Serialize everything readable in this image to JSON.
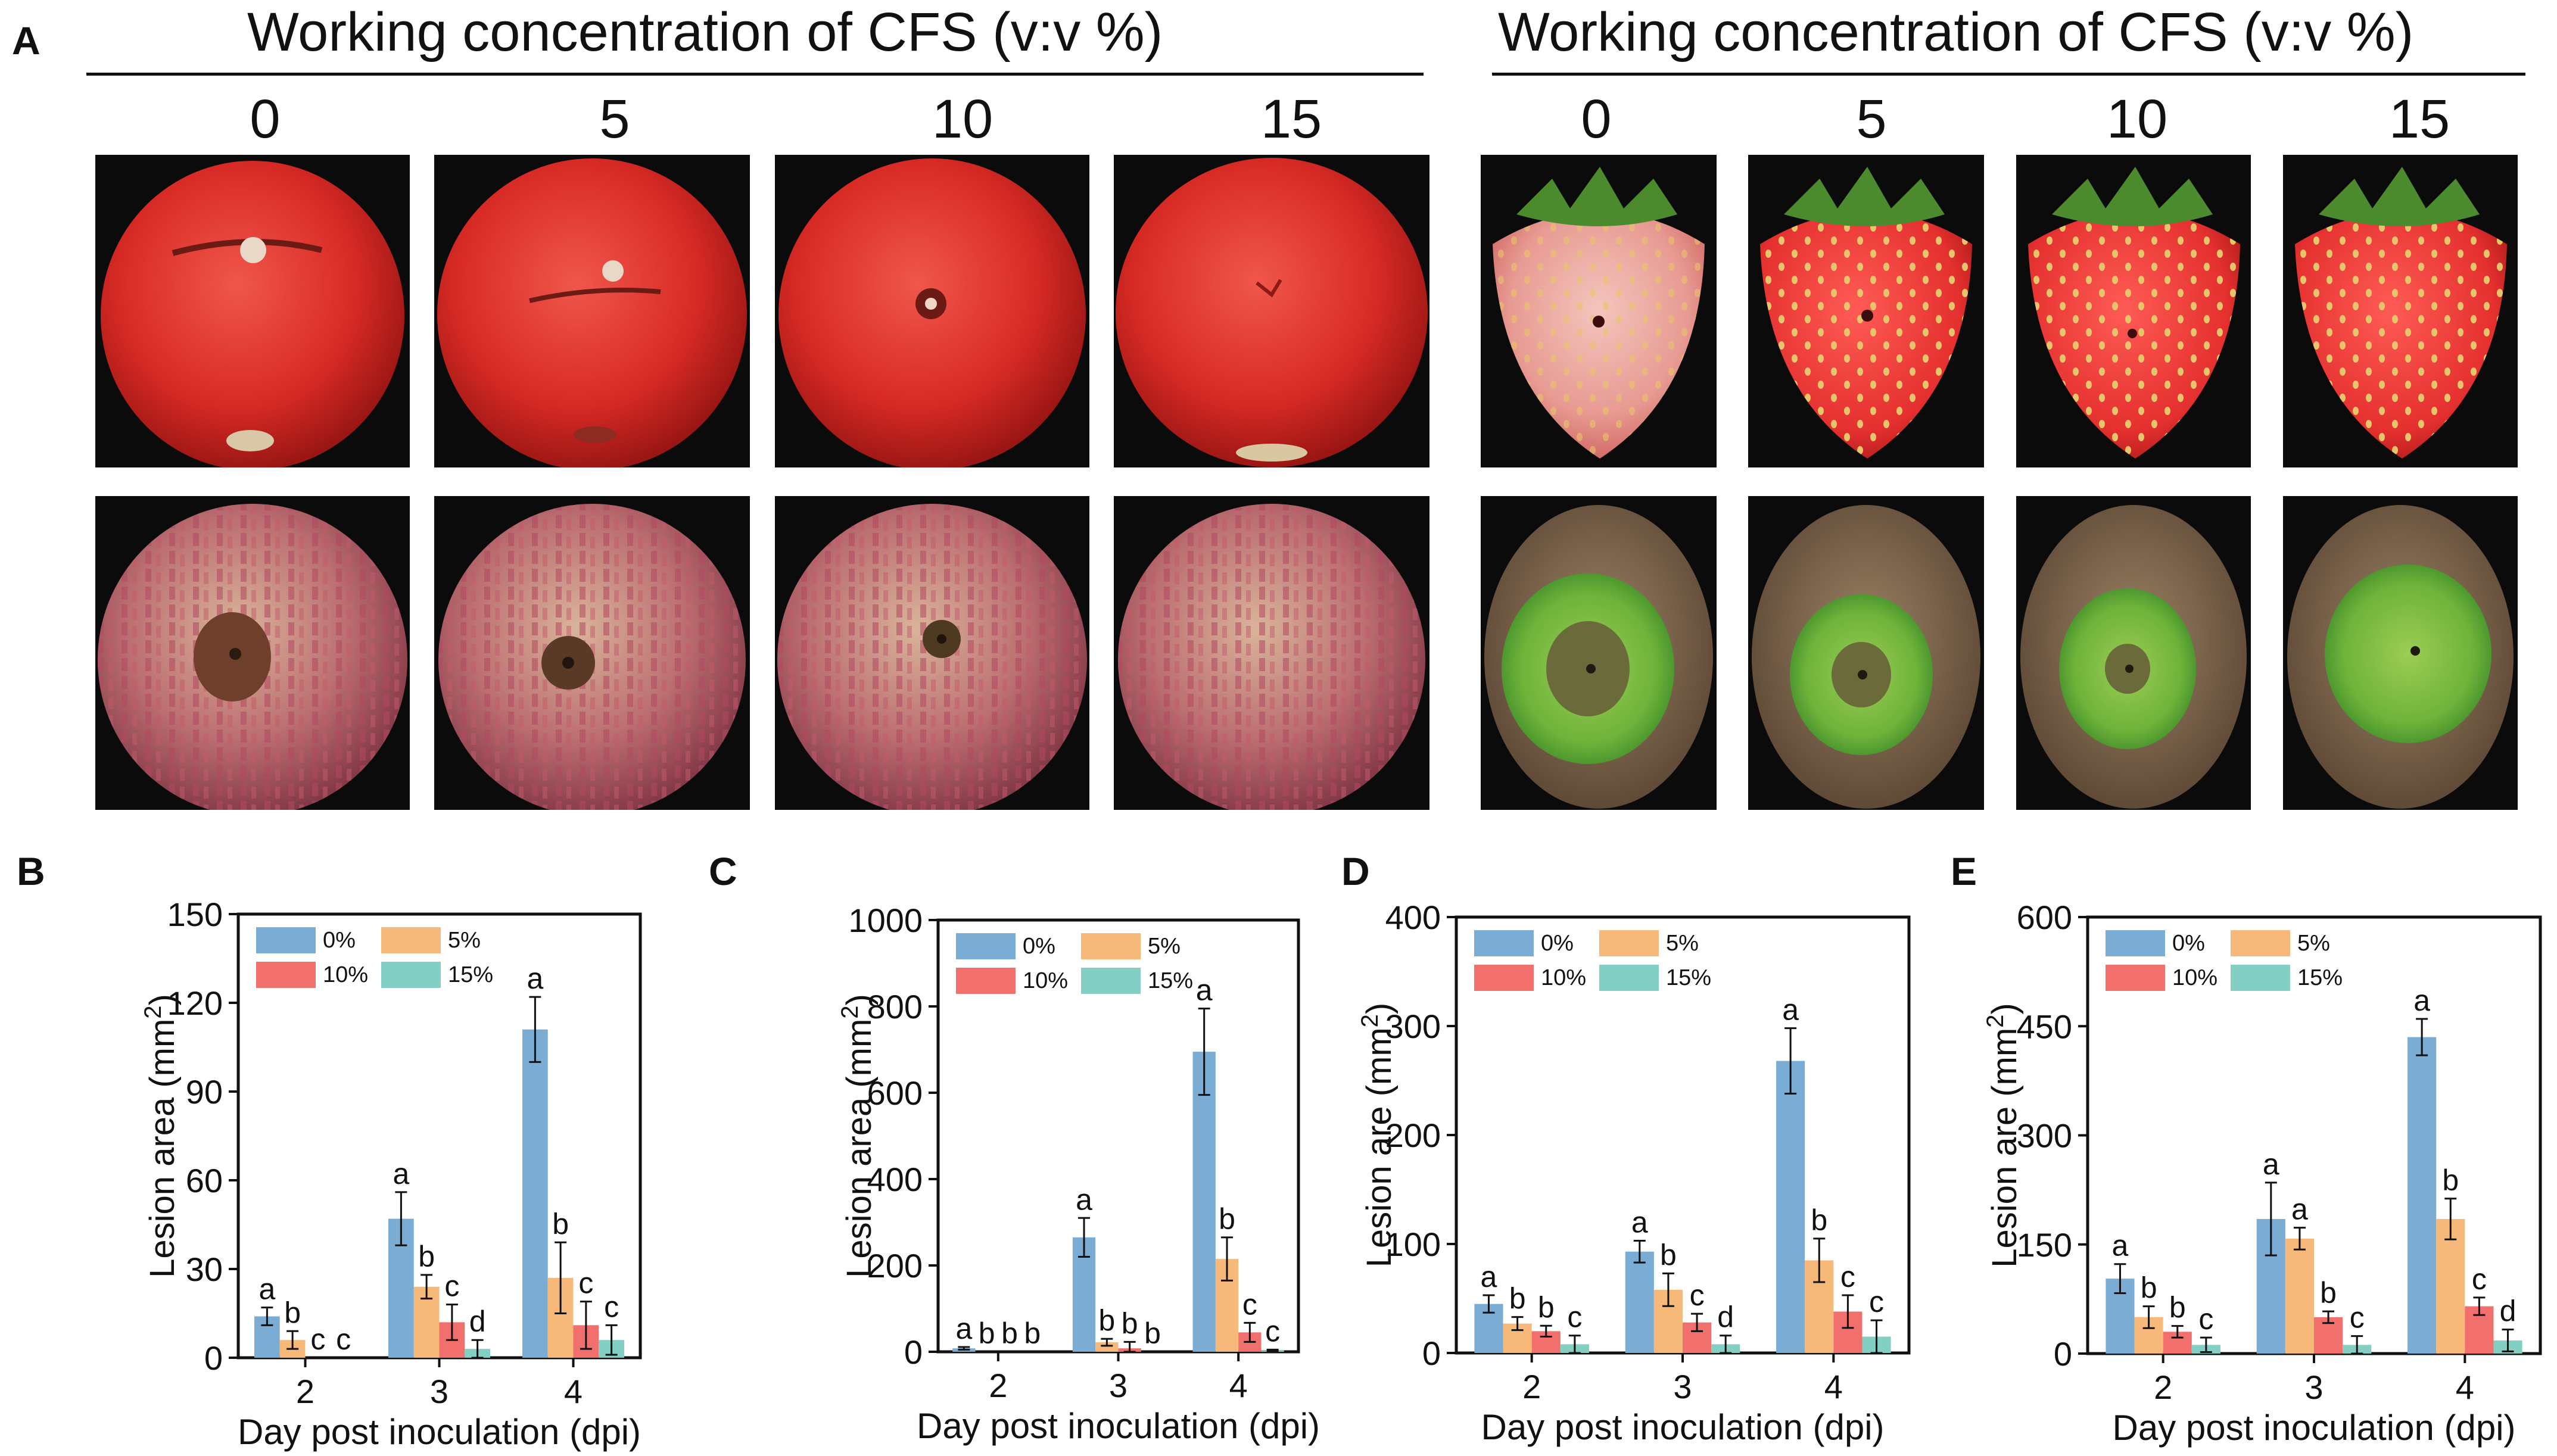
{
  "panel_a": {
    "letter": "A",
    "left_title": "Working concentration of CFS  (v:v %)",
    "right_title": "Working concentration of CFS  (v:v %)",
    "left_concentrations": [
      "0",
      "5",
      "10",
      "15"
    ],
    "right_concentrations": [
      "0",
      "5",
      "10",
      "15"
    ],
    "row_fruits": {
      "left_top": "tomato",
      "left_bottom": "apple",
      "right_top": "strawberry",
      "right_bottom": "kiwifruit"
    }
  },
  "colors": {
    "s0": "#7bacd4",
    "s5": "#f6b97a",
    "s10": "#f1706e",
    "s15": "#84cfc3"
  },
  "chart_data": [
    {
      "letter": "B",
      "type": "bar",
      "title": "",
      "xlabel": "Day post inoculation (dpi)",
      "ylabel": "Lesion area (mm",
      "ylabel_sup": "2",
      "ylabel_end": ")",
      "categories": [
        "2",
        "3",
        "4"
      ],
      "ylim": [
        0,
        150
      ],
      "yticks": [
        "0",
        "30",
        "60",
        "90",
        "120",
        "150"
      ],
      "series": [
        {
          "name": "0%",
          "values": [
            14,
            47,
            111
          ],
          "errors": [
            3,
            9,
            11
          ],
          "letters": [
            "a",
            "a",
            "a"
          ]
        },
        {
          "name": "5%",
          "values": [
            6,
            24,
            27
          ],
          "errors": [
            3,
            4,
            12
          ],
          "letters": [
            "b",
            "b",
            "b"
          ]
        },
        {
          "name": "10%",
          "values": [
            0,
            12,
            11
          ],
          "errors": [
            0,
            6,
            8
          ],
          "letters": [
            "c",
            "c",
            "c"
          ]
        },
        {
          "name": "15%",
          "values": [
            0,
            3,
            6
          ],
          "errors": [
            0,
            3,
            5
          ],
          "letters": [
            "c",
            "d",
            "c"
          ]
        }
      ]
    },
    {
      "letter": "C",
      "type": "bar",
      "title": "",
      "xlabel": "Day post inoculation (dpi)",
      "ylabel": "Lesion area (mm",
      "ylabel_sup": "2",
      "ylabel_end": ")",
      "categories": [
        "2",
        "3",
        "4"
      ],
      "ylim": [
        0,
        1000
      ],
      "yticks": [
        "0",
        "200",
        "400",
        "600",
        "800",
        "1000"
      ],
      "series": [
        {
          "name": "0%",
          "values": [
            8,
            265,
            695
          ],
          "errors": [
            3,
            45,
            100
          ],
          "letters": [
            "a",
            "a",
            "a"
          ]
        },
        {
          "name": "5%",
          "values": [
            0,
            22,
            215
          ],
          "errors": [
            0,
            8,
            50
          ],
          "letters": [
            "b",
            "b",
            "b"
          ]
        },
        {
          "name": "10%",
          "values": [
            0,
            8,
            45
          ],
          "errors": [
            0,
            15,
            22
          ],
          "letters": [
            "b",
            "b",
            "c"
          ]
        },
        {
          "name": "15%",
          "values": [
            0,
            0,
            3
          ],
          "errors": [
            0,
            0,
            2
          ],
          "letters": [
            "b",
            "b",
            "c"
          ]
        }
      ]
    },
    {
      "letter": "D",
      "type": "bar",
      "title": "",
      "xlabel": "Day post inoculation (dpi)",
      "ylabel": "Lesion are (mm",
      "ylabel_sup": "2",
      "ylabel_end": ")",
      "categories": [
        "2",
        "3",
        "4"
      ],
      "ylim": [
        0,
        400
      ],
      "yticks": [
        "0",
        "100",
        "200",
        "300",
        "400"
      ],
      "series": [
        {
          "name": "0%",
          "values": [
            45,
            93,
            268
          ],
          "errors": [
            8,
            10,
            30
          ],
          "letters": [
            "a",
            "a",
            "a"
          ]
        },
        {
          "name": "5%",
          "values": [
            27,
            58,
            85
          ],
          "errors": [
            6,
            15,
            20
          ],
          "letters": [
            "b",
            "b",
            "b"
          ]
        },
        {
          "name": "10%",
          "values": [
            20,
            28,
            38
          ],
          "errors": [
            5,
            8,
            15
          ],
          "letters": [
            "b",
            "c",
            "c"
          ]
        },
        {
          "name": "15%",
          "values": [
            8,
            8,
            15
          ],
          "errors": [
            8,
            8,
            15
          ],
          "letters": [
            "c",
            "d",
            "c"
          ]
        }
      ]
    },
    {
      "letter": "E",
      "type": "bar",
      "title": "",
      "xlabel": "Day post inoculation (dpi)",
      "ylabel": "Lesion are (mm",
      "ylabel_sup": "2",
      "ylabel_end": ")",
      "categories": [
        "2",
        "3",
        "4"
      ],
      "ylim": [
        0,
        600
      ],
      "yticks": [
        "0",
        "150",
        "300",
        "450",
        "600"
      ],
      "series": [
        {
          "name": "0%",
          "values": [
            103,
            185,
            435
          ],
          "errors": [
            20,
            50,
            25
          ],
          "letters": [
            "a",
            "a",
            "a"
          ]
        },
        {
          "name": "5%",
          "values": [
            50,
            158,
            185
          ],
          "errors": [
            15,
            15,
            28
          ],
          "letters": [
            "b",
            "a",
            "b"
          ]
        },
        {
          "name": "10%",
          "values": [
            30,
            50,
            65
          ],
          "errors": [
            8,
            8,
            12
          ],
          "letters": [
            "b",
            "b",
            "c"
          ]
        },
        {
          "name": "15%",
          "values": [
            12,
            12,
            18
          ],
          "errors": [
            10,
            12,
            15
          ],
          "letters": [
            "c",
            "c",
            "d"
          ]
        }
      ]
    }
  ]
}
